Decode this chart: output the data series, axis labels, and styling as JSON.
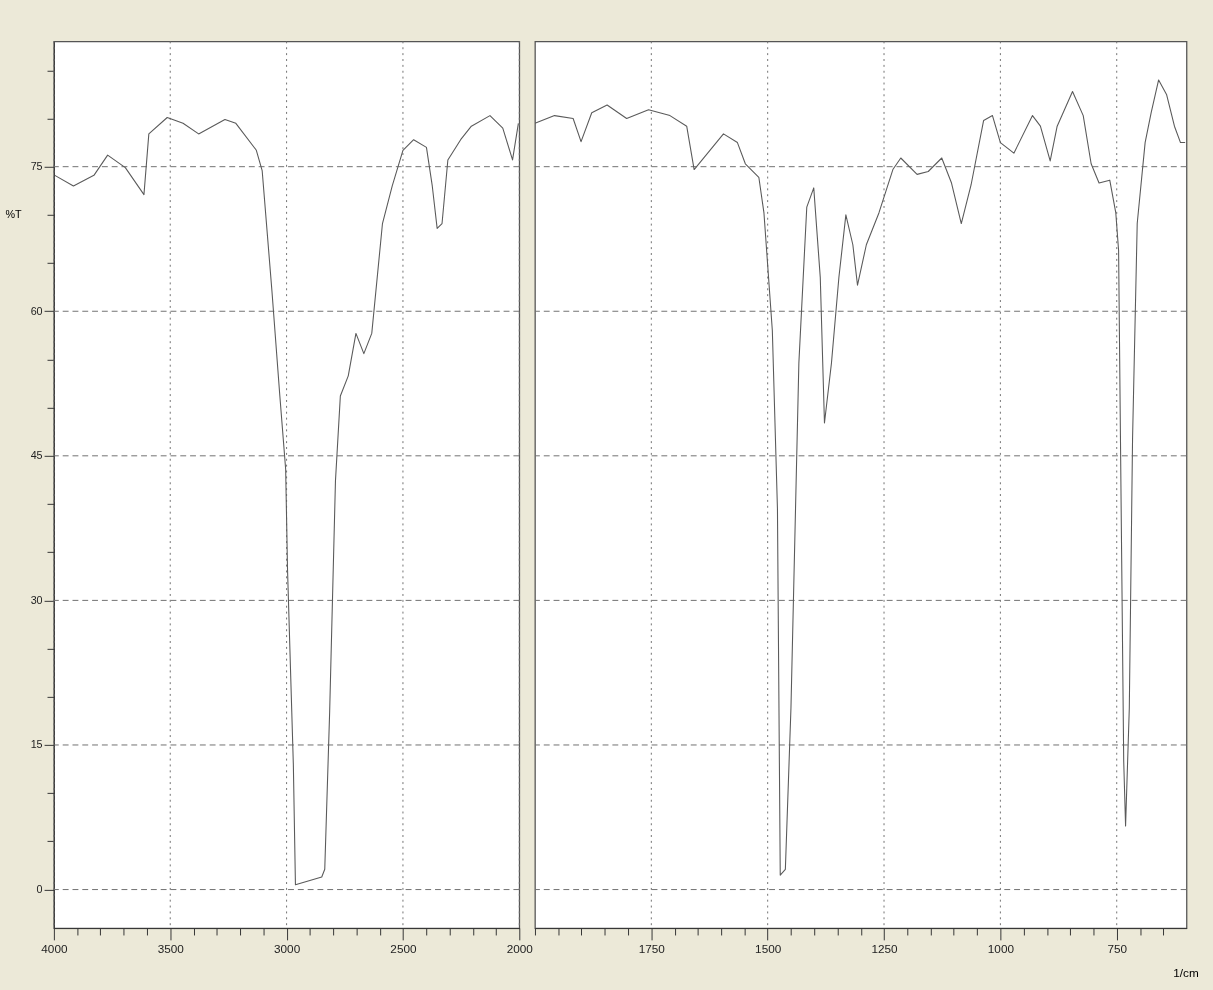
{
  "chart_data": [
    {
      "type": "line",
      "ylabel": "%T",
      "xlim": [
        4000,
        2000
      ],
      "ylim": [
        -4,
        88
      ],
      "xticks": [
        4000,
        {
          "value": 3900,
          "label": null
        },
        {
          "value": 3800,
          "label": null
        },
        {
          "value": 3700,
          "label": null
        },
        {
          "value": 3600,
          "label": null
        },
        3500,
        {
          "value": 3400,
          "label": null
        },
        {
          "value": 3300,
          "label": null
        },
        {
          "value": 3200,
          "label": null
        },
        {
          "value": 3100,
          "label": null
        },
        3000,
        {
          "value": 2900,
          "label": null
        },
        {
          "value": 2800,
          "label": null
        },
        {
          "value": 2700,
          "label": null
        },
        {
          "value": 2600,
          "label": null
        },
        2500,
        {
          "value": 2400,
          "label": null
        },
        {
          "value": 2300,
          "label": null
        },
        {
          "value": 2200,
          "label": null
        },
        {
          "value": 2100,
          "label": null
        },
        2000
      ],
      "yticks": [
        0,
        {
          "value": 5,
          "label": null
        },
        {
          "value": 10,
          "label": null
        },
        15,
        {
          "value": 20,
          "label": null
        },
        {
          "value": 25,
          "label": null
        },
        30,
        {
          "value": 35,
          "label": null
        },
        {
          "value": 40,
          "label": null
        },
        45,
        {
          "value": 50,
          "label": null
        },
        {
          "value": 55,
          "label": null
        },
        60,
        {
          "value": 65,
          "label": null
        },
        {
          "value": 70,
          "label": null
        },
        75,
        {
          "value": 80,
          "label": null
        },
        {
          "value": 85,
          "label": null
        }
      ],
      "grid": true,
      "marker": "none",
      "line_style": "solid",
      "series": [
        {
          "color": "#5a5a5a",
          "x": [
            3996,
            3916,
            3828,
            3769,
            3693,
            3613,
            3592,
            3513,
            3445,
            3378,
            3265,
            3218,
            3130,
            3105,
            3063,
            3029,
            3004,
            2996,
            2971,
            2962,
            2849,
            2836,
            2815,
            2790,
            2769,
            2735,
            2702,
            2668,
            2634,
            2588,
            2546,
            2500,
            2454,
            2399,
            2374,
            2353,
            2332,
            2307,
            2252,
            2206,
            2126,
            2071,
            2029,
            2004
          ],
          "values": [
            74.1,
            73.0,
            74.1,
            76.2,
            74.9,
            72.1,
            78.4,
            80.1,
            79.5,
            78.4,
            79.9,
            79.5,
            76.7,
            74.6,
            62.1,
            51.2,
            43.6,
            33.2,
            13.0,
            0.5,
            1.3,
            2.1,
            18.4,
            42.4,
            51.2,
            53.3,
            57.7,
            55.6,
            57.7,
            69.1,
            73.0,
            76.7,
            77.8,
            77.0,
            73.0,
            68.6,
            69.1,
            75.7,
            77.8,
            79.2,
            80.3,
            79.0,
            75.7,
            79.5
          ]
        }
      ]
    },
    {
      "type": "line",
      "xlabel": "1/cm",
      "xlim": [
        2000,
        600
      ],
      "ylim": [
        -4,
        88
      ],
      "tick_labels": "x",
      "xticks": [
        {
          "value": 2000,
          "label": null
        },
        {
          "value": 1950,
          "label": null
        },
        {
          "value": 1900,
          "label": null
        },
        {
          "value": 1850,
          "label": null
        },
        {
          "value": 1800,
          "label": null
        },
        1750,
        {
          "value": 1700,
          "label": null
        },
        {
          "value": 1650,
          "label": null
        },
        {
          "value": 1600,
          "label": null
        },
        {
          "value": 1550,
          "label": null
        },
        1500,
        {
          "value": 1450,
          "label": null
        },
        {
          "value": 1400,
          "label": null
        },
        {
          "value": 1350,
          "label": null
        },
        {
          "value": 1300,
          "label": null
        },
        1250,
        {
          "value": 1200,
          "label": null
        },
        {
          "value": 1150,
          "label": null
        },
        {
          "value": 1100,
          "label": null
        },
        {
          "value": 1050,
          "label": null
        },
        1000,
        {
          "value": 950,
          "label": null
        },
        {
          "value": 900,
          "label": null
        },
        {
          "value": 850,
          "label": null
        },
        {
          "value": 800,
          "label": null
        },
        750,
        {
          "value": 700,
          "label": null
        },
        {
          "value": 650,
          "label": null
        }
      ],
      "yticks": [
        0,
        15,
        30,
        45,
        60,
        75
      ],
      "grid": true,
      "marker": "none",
      "line_style": "solid",
      "series": [
        {
          "color": "#5a5a5a",
          "x": [
            2000,
            1958,
            1918,
            1901,
            1878,
            1845,
            1803,
            1756,
            1710,
            1674,
            1658,
            1595,
            1565,
            1548,
            1519,
            1508,
            1490,
            1479,
            1473,
            1462,
            1450,
            1433,
            1416,
            1401,
            1387,
            1378,
            1363,
            1347,
            1332,
            1317,
            1307,
            1288,
            1261,
            1231,
            1214,
            1179,
            1155,
            1126,
            1105,
            1084,
            1063,
            1036,
            1017,
            1000,
            971,
            931,
            914,
            893,
            878,
            845,
            822,
            805,
            788,
            765,
            752,
            746,
            742,
            735,
            731,
            723,
            716,
            706,
            689,
            676,
            660,
            643,
            626,
            613,
            603
          ],
          "values": [
            79.5,
            80.3,
            80.0,
            77.6,
            80.6,
            81.4,
            80.0,
            80.9,
            80.3,
            79.2,
            74.7,
            78.4,
            77.5,
            75.3,
            73.9,
            70.2,
            58.0,
            39.5,
            1.5,
            2.1,
            18.8,
            54.6,
            70.8,
            72.8,
            63.5,
            48.4,
            54.6,
            63.5,
            70.0,
            66.9,
            62.7,
            66.9,
            70.2,
            74.7,
            75.9,
            74.2,
            74.5,
            75.9,
            73.3,
            69.1,
            73.1,
            79.8,
            80.3,
            77.5,
            76.4,
            80.3,
            79.2,
            75.6,
            79.2,
            82.8,
            80.3,
            75.3,
            73.3,
            73.6,
            70.2,
            66.3,
            46.8,
            13.3,
            6.6,
            18.8,
            46.8,
            69.1,
            77.5,
            80.6,
            84.0,
            82.5,
            79.2,
            77.5,
            77.5
          ]
        }
      ]
    }
  ]
}
